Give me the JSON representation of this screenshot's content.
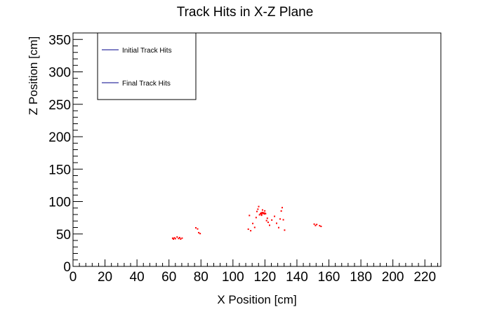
{
  "chart_data": {
    "type": "scatter",
    "title": "Track Hits in X-Z Plane",
    "xlabel": "X Position [cm]",
    "ylabel": "Z Position [cm]",
    "xlim": [
      0,
      230
    ],
    "ylim": [
      0,
      360
    ],
    "x_ticks": [
      0,
      20,
      40,
      60,
      80,
      100,
      120,
      140,
      160,
      180,
      200,
      220
    ],
    "y_ticks": [
      0,
      50,
      100,
      150,
      200,
      250,
      300,
      350
    ],
    "grid": false,
    "legend": {
      "placement": "top-left",
      "entries": [
        {
          "label": "Initial Track Hits",
          "color": "#00008b"
        },
        {
          "label": "Final Track Hits",
          "color": "#00008b"
        }
      ]
    },
    "marker_color": "#ff0000",
    "series": [
      {
        "points": [
          [
            62.3,
            43.5
          ],
          [
            62.8,
            42.1
          ],
          [
            63.4,
            44.0
          ],
          [
            64.0,
            42.8
          ],
          [
            65.1,
            45.3
          ],
          [
            66.0,
            43.0
          ],
          [
            66.7,
            44.4
          ],
          [
            67.3,
            42.2
          ],
          [
            68.2,
            43.6
          ],
          [
            76.8,
            59.5
          ],
          [
            77.9,
            57.8
          ],
          [
            78.6,
            52.0
          ],
          [
            79.5,
            50.6
          ],
          [
            109.6,
            57.4
          ],
          [
            110.3,
            78.5
          ],
          [
            111.1,
            55.0
          ],
          [
            112.4,
            66.2
          ],
          [
            113.6,
            60.1
          ],
          [
            114.5,
            75.3
          ],
          [
            115.0,
            84.7
          ],
          [
            115.6,
            88.2
          ],
          [
            116.1,
            92.3
          ],
          [
            116.6,
            79.6
          ],
          [
            117.2,
            81.2
          ],
          [
            117.6,
            82.5
          ],
          [
            118.0,
            80.7
          ],
          [
            118.4,
            83.1
          ],
          [
            118.8,
            81.9
          ],
          [
            119.2,
            82.6
          ],
          [
            119.6,
            80.9
          ],
          [
            120.0,
            82.0
          ],
          [
            120.4,
            81.3
          ],
          [
            117.9,
            78.8
          ],
          [
            119.9,
            85.6
          ],
          [
            118.5,
            87.0
          ],
          [
            121.0,
            70.6
          ],
          [
            121.5,
            74.2
          ],
          [
            122.0,
            68.0
          ],
          [
            122.9,
            63.4
          ],
          [
            124.3,
            71.5
          ],
          [
            126.0,
            77.2
          ],
          [
            127.3,
            66.5
          ],
          [
            128.6,
            59.8
          ],
          [
            129.5,
            73.1
          ],
          [
            130.2,
            85.4
          ],
          [
            130.8,
            90.6
          ],
          [
            131.5,
            71.9
          ],
          [
            132.3,
            55.9
          ],
          [
            150.8,
            65.2
          ],
          [
            151.6,
            63.1
          ],
          [
            152.4,
            64.6
          ],
          [
            154.2,
            62.8
          ],
          [
            155.1,
            61.7
          ]
        ]
      }
    ]
  }
}
